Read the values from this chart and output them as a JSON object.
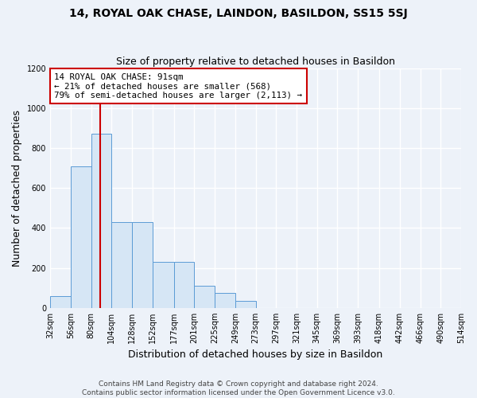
{
  "title": "14, ROYAL OAK CHASE, LAINDON, BASILDON, SS15 5SJ",
  "subtitle": "Size of property relative to detached houses in Basildon",
  "xlabel": "Distribution of detached houses by size in Basildon",
  "ylabel": "Number of detached properties",
  "footnote": "Contains HM Land Registry data © Crown copyright and database right 2024.\nContains public sector information licensed under the Open Government Licence v3.0.",
  "bin_edges": [
    32,
    56,
    80,
    104,
    128,
    152,
    177,
    201,
    225,
    249,
    273,
    297,
    321,
    345,
    369,
    393,
    418,
    442,
    466,
    490,
    514
  ],
  "bar_heights": [
    60,
    710,
    870,
    430,
    430,
    230,
    230,
    110,
    75,
    35,
    0,
    0,
    0,
    0,
    0,
    0,
    0,
    0,
    0,
    0
  ],
  "bar_color": "#d6e6f5",
  "bar_edgecolor": "#5b9bd5",
  "vline_x": 91,
  "vline_color": "#cc0000",
  "annotation_text": "14 ROYAL OAK CHASE: 91sqm\n← 21% of detached houses are smaller (568)\n79% of semi-detached houses are larger (2,113) →",
  "annotation_box_color": "#cc0000",
  "annotation_bg": "#ffffff",
  "ylim": [
    0,
    1200
  ],
  "yticks": [
    0,
    200,
    400,
    600,
    800,
    1000,
    1200
  ],
  "background_color": "#edf2f9",
  "grid_color": "#ffffff",
  "title_fontsize": 10,
  "subtitle_fontsize": 9,
  "ylabel_fontsize": 9,
  "xlabel_fontsize": 9,
  "tick_fontsize": 7,
  "footnote_fontsize": 6.5
}
